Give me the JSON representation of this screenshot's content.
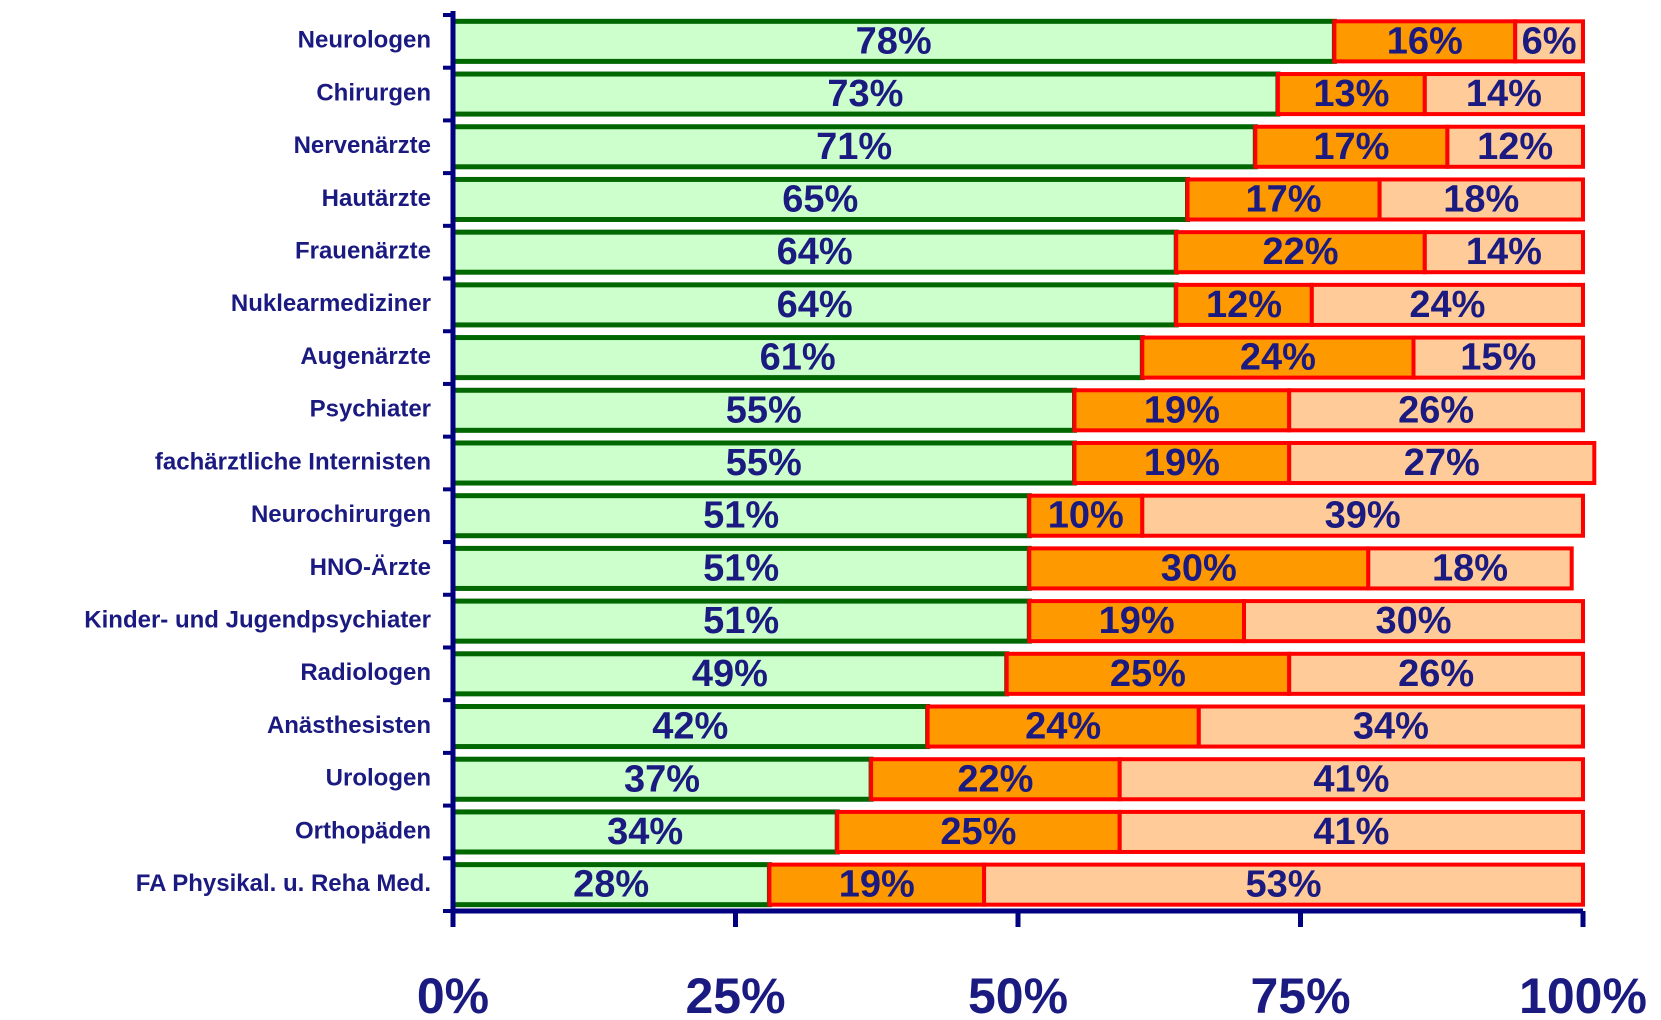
{
  "chart_data": {
    "type": "stacked_barh",
    "categories": [
      "Neurologen",
      "Chirurgen",
      "Nervenärzte",
      "Hautärzte",
      "Frauenärzte",
      "Nuklearmediziner",
      "Augenärzte",
      "Psychiater",
      "fachärztliche Internisten",
      "Neurochirurgen",
      "HNO-Ärzte",
      "Kinder- und Jugendpsychiater",
      "Radiologen",
      "Anästhesisten",
      "Urologen",
      "Orthopäden",
      "FA Physikal. u. Reha Med."
    ],
    "series": [
      {
        "color": "#ccffcc",
        "values": [
          78,
          73,
          71,
          65,
          64,
          64,
          61,
          55,
          55,
          51,
          51,
          51,
          49,
          42,
          37,
          34,
          28
        ],
        "value_labels": [
          "78%",
          "73%",
          "71%",
          "65%",
          "64%",
          "64%",
          "61%",
          "55%",
          "55%",
          "51%",
          "51%",
          "51%",
          "49%",
          "42%",
          "37%",
          "34%",
          "28%"
        ]
      },
      {
        "color": "#ff9900",
        "values": [
          16,
          13,
          17,
          17,
          22,
          12,
          24,
          19,
          19,
          10,
          30,
          19,
          25,
          24,
          22,
          25,
          19
        ],
        "value_labels": [
          "16%",
          "13%",
          "17%",
          "17%",
          "22%",
          "12%",
          "24%",
          "19%",
          "19%",
          "10%",
          "30%",
          "19%",
          "25%",
          "24%",
          "22%",
          "25%",
          "19%"
        ]
      },
      {
        "color": "#ffcc99",
        "values": [
          6,
          14,
          12,
          18,
          14,
          24,
          15,
          26,
          27,
          39,
          18,
          30,
          26,
          34,
          41,
          41,
          53
        ],
        "value_labels": [
          "6%",
          "14%",
          "12%",
          "18%",
          "14%",
          "24%",
          "15%",
          "26%",
          "27%",
          "39%",
          "18%",
          "30%",
          "26%",
          "34%",
          "41%",
          "41%",
          "53%"
        ]
      }
    ],
    "xlim": [
      0,
      100
    ],
    "xticks": [
      {
        "value": 0,
        "label": "0%"
      },
      {
        "value": 25,
        "label": "25%"
      },
      {
        "value": 50,
        "label": "50%"
      },
      {
        "value": 75,
        "label": "75%"
      },
      {
        "value": 100,
        "label": "100%"
      }
    ]
  }
}
